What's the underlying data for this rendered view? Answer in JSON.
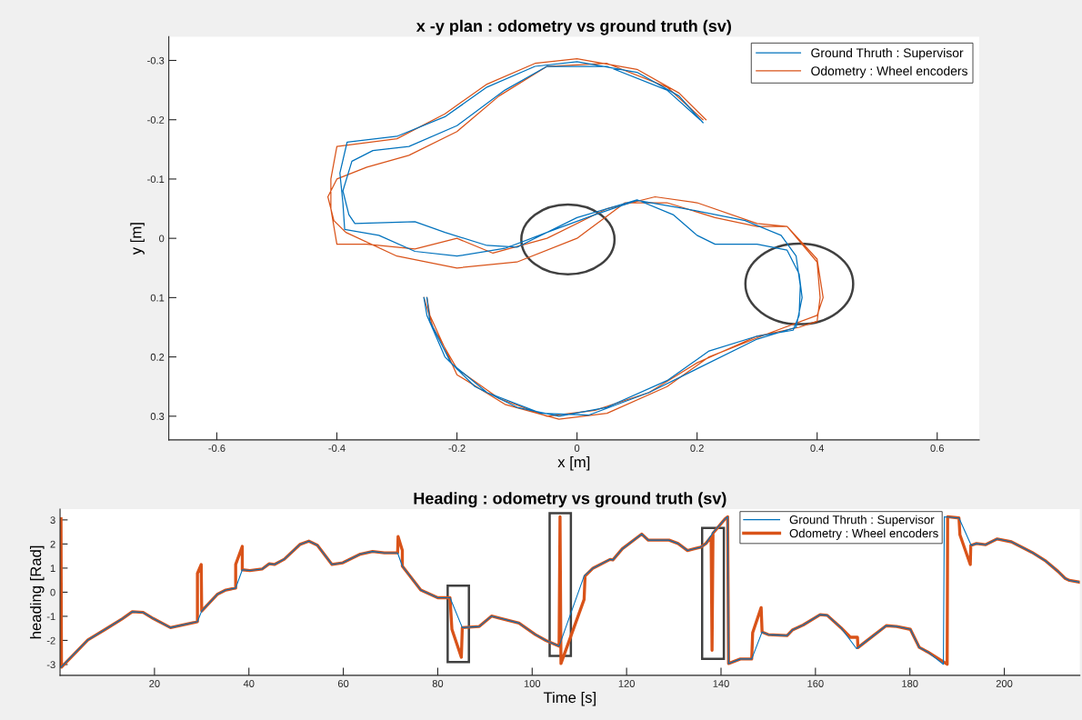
{
  "chart_data": [
    {
      "type": "line",
      "title": "x -y plan : odometry vs ground truth (sv)",
      "xlabel": "x [m]",
      "ylabel": "y [m]",
      "xlim": [
        -0.68,
        0.67
      ],
      "ylim": [
        0.34,
        -0.34
      ],
      "xticks": [
        -0.6,
        -0.4,
        -0.2,
        0,
        0.2,
        0.4,
        0.6
      ],
      "yticks": [
        -0.3,
        -0.2,
        -0.1,
        0,
        0.1,
        0.2,
        0.3
      ],
      "legend": "top right",
      "grid": false,
      "marker": "none",
      "line_style": "solid",
      "series": [
        {
          "name": "Ground Thruth : Supervisor",
          "color": "#0072bd",
          "x": [
            0.21,
            0.17,
            0.1,
            0,
            -0.07,
            -0.15,
            -0.22,
            -0.3,
            -0.383,
            -0.395,
            -0.39,
            -0.387,
            -0.33,
            -0.27,
            -0.2,
            -0.12,
            -0.05,
            0.03,
            0.1,
            0.18,
            0.28,
            0.34,
            0.365,
            0.372,
            0.37,
            0.36,
            0.3,
            0.22,
            0.15,
            0.05,
            -0.03,
            -0.1,
            -0.17,
            -0.22,
            -0.25,
            -0.255,
            null,
            0.205,
            0.15,
            0.05,
            -0.05,
            -0.12,
            -0.2,
            -0.28,
            -0.34,
            -0.375,
            -0.39,
            -0.38,
            -0.37,
            -0.27,
            -0.22,
            -0.15,
            -0.1,
            0,
            0.1,
            0.16,
            0.2,
            0.23,
            0.3,
            0.35,
            0.37,
            0.375,
            0.365,
            0.3,
            0.2,
            0.12,
            0.02,
            -0.06,
            -0.15,
            -0.21,
            -0.245,
            -0.25
          ],
          "values": [
            -0.195,
            -0.24,
            -0.28,
            -0.298,
            -0.29,
            -0.255,
            -0.205,
            -0.172,
            -0.162,
            -0.11,
            -0.06,
            -0.015,
            -0.005,
            0.022,
            0.03,
            0.017,
            -0.01,
            -0.04,
            -0.064,
            -0.05,
            -0.03,
            -0.005,
            0.03,
            0.08,
            0.13,
            0.155,
            0.165,
            0.19,
            0.24,
            0.285,
            0.3,
            0.285,
            0.25,
            0.2,
            0.13,
            0.1,
            null,
            -0.2,
            -0.25,
            -0.29,
            -0.29,
            -0.25,
            -0.19,
            -0.155,
            -0.148,
            -0.13,
            -0.08,
            -0.04,
            -0.025,
            -0.028,
            -0.01,
            0.012,
            0.015,
            -0.035,
            -0.065,
            -0.04,
            -0.005,
            0.01,
            0.01,
            0.02,
            0.06,
            0.1,
            0.15,
            0.17,
            0.22,
            0.26,
            0.298,
            0.295,
            0.26,
            0.21,
            0.14,
            0.1
          ]
        },
        {
          "name": "Odometry : Wheel encoders",
          "color": "#d95319",
          "x": [
            0.215,
            0.17,
            0.1,
            0,
            -0.07,
            -0.15,
            -0.22,
            -0.3,
            -0.4,
            -0.41,
            -0.41,
            -0.4,
            -0.35,
            -0.27,
            -0.2,
            -0.14,
            -0.05,
            0.05,
            0.13,
            0.2,
            0.3,
            0.35,
            0.4,
            0.405,
            0.4,
            0.37,
            0.3,
            0.2,
            0.12,
            0.03,
            -0.05,
            -0.13,
            -0.2,
            -0.24,
            -0.255,
            null,
            0.21,
            0.15,
            0.05,
            -0.05,
            -0.13,
            -0.2,
            -0.28,
            -0.35,
            -0.4,
            -0.415,
            -0.405,
            -0.385,
            -0.3,
            -0.2,
            -0.1,
            0,
            0.08,
            0.15,
            0.23,
            0.3,
            0.35,
            0.4,
            0.41,
            0.4,
            0.32,
            0.22,
            0.15,
            0.05,
            -0.03,
            -0.12,
            -0.2,
            -0.245,
            -0.25
          ],
          "values": [
            -0.2,
            -0.245,
            -0.285,
            -0.303,
            -0.295,
            -0.26,
            -0.21,
            -0.168,
            -0.155,
            -0.1,
            -0.05,
            0.01,
            0.01,
            0.018,
            0.0,
            0.025,
            0.0,
            -0.05,
            -0.07,
            -0.06,
            -0.025,
            -0.02,
            0.04,
            0.1,
            0.14,
            0.15,
            0.165,
            0.21,
            0.26,
            0.29,
            0.3,
            0.27,
            0.22,
            0.15,
            0.1,
            null,
            -0.2,
            -0.255,
            -0.295,
            -0.29,
            -0.24,
            -0.18,
            -0.14,
            -0.12,
            -0.1,
            -0.07,
            -0.03,
            -0.01,
            0.03,
            0.05,
            0.04,
            0.0,
            -0.06,
            -0.06,
            -0.035,
            -0.02,
            -0.02,
            0.035,
            0.1,
            0.13,
            0.16,
            0.2,
            0.25,
            0.295,
            0.305,
            0.28,
            0.23,
            0.13,
            0.1
          ]
        }
      ]
    },
    {
      "type": "line",
      "title": "Heading : odometry vs ground truth (sv)",
      "xlabel": "Time [s]",
      "ylabel": "heading [Rad]",
      "xlim": [
        0,
        216
      ],
      "ylim": [
        -3.45,
        3.45
      ],
      "xticks": [
        20,
        40,
        60,
        80,
        100,
        120,
        140,
        160,
        180,
        200
      ],
      "yticks": [
        -3,
        -2,
        -1,
        0,
        1,
        2,
        3
      ],
      "legend": "top right",
      "grid": false,
      "marker": "none",
      "line_style": "solid",
      "series": [
        {
          "name": "Ground Thruth : Supervisor",
          "color": "#0072bd",
          "x": [
            0.2,
            5.9,
            9.6,
            13.2,
            15.3,
            17.6,
            19.8,
            23.4,
            28.5,
            29.1,
            30,
            33.3,
            35.1,
            37.2,
            38.6,
            40.2,
            42.8,
            44.3,
            45.4,
            47.5,
            50.8,
            52.7,
            54.5,
            57.6,
            59.9,
            63.6,
            66.2,
            68.7,
            71.5,
            72.5,
            76.4,
            80,
            82.6,
            85.2,
            88.8,
            91.4,
            93.2,
            97.2,
            100.7,
            102.9,
            105.7,
            111,
            112.9,
            116.5,
            117.1,
            119.1,
            123.2,
            124.6,
            129,
            130.9,
            132.9,
            135.7,
            136.8,
            138.2,
            140.8,
            141.4,
            141.6,
            144.1,
            146.5,
            148.7,
            150,
            154,
            155.1,
            157.4,
            161,
            162.5,
            165.4,
            168.7,
            172.1,
            175,
            177.2,
            180.1,
            182,
            183.8,
            187.1,
            187.3,
            190.4,
            193,
            194.1,
            196,
            198.5,
            201.5,
            205.9,
            208.8,
            211.4,
            212.9,
            213.8,
            215.8
          ],
          "values": [
            -3.11,
            -1.98,
            -1.54,
            -1.1,
            -0.81,
            -0.84,
            -1.1,
            -1.47,
            -1.25,
            -1.22,
            -0.78,
            -0.09,
            0.09,
            0.17,
            0.93,
            0.9,
            0.96,
            1.18,
            1.15,
            1.37,
            1.98,
            2.12,
            1.95,
            1.15,
            1.22,
            1.58,
            1.69,
            1.63,
            1.63,
            1.08,
            0.09,
            -0.23,
            -0.23,
            -1.47,
            -1.42,
            -0.99,
            -1.08,
            -1.28,
            -1.76,
            -2.0,
            -2.24,
            0.67,
            1.0,
            1.36,
            1.34,
            1.8,
            2.41,
            2.16,
            2.16,
            2.02,
            1.73,
            1.87,
            2.02,
            2.45,
            3.03,
            3.13,
            -2.96,
            -2.77,
            -2.77,
            -1.65,
            -1.76,
            -1.8,
            -1.57,
            -1.36,
            -0.93,
            -0.96,
            -1.47,
            -2.34,
            -1.83,
            -1.39,
            -1.42,
            -1.54,
            -2.29,
            -2.48,
            -2.99,
            3.13,
            3.08,
            1.94,
            2.02,
            1.97,
            2.21,
            2.09,
            1.65,
            1.29,
            0.86,
            0.57,
            0.49,
            0.42
          ]
        },
        {
          "name": "Odometry : Wheel encoders",
          "color": "#d95319",
          "x": [
            0.2,
            0.3,
            5.9,
            9.6,
            13.2,
            15.3,
            17.6,
            19.8,
            23.4,
            28.5,
            29.1,
            29.1,
            29.9,
            30,
            33.3,
            35.1,
            37.2,
            37.2,
            38.6,
            38.6,
            40.2,
            42.8,
            44.3,
            45.4,
            47.5,
            50.8,
            52.7,
            54.5,
            57.6,
            59.9,
            63.6,
            66.2,
            68.7,
            71.5,
            71.6,
            72.5,
            72.5,
            76.4,
            80,
            82.6,
            83,
            85,
            85.2,
            88.8,
            91.4,
            93.2,
            97.2,
            100.7,
            102.9,
            105.7,
            105.9,
            106.1,
            111,
            111.2,
            112.9,
            116.5,
            117.1,
            119.1,
            123.2,
            124.6,
            129,
            130.9,
            132.9,
            135.7,
            136.8,
            137.9,
            138.1,
            138.3,
            140.8,
            141.4,
            141.6,
            144.1,
            146.5,
            146.7,
            148.5,
            148.7,
            150,
            154,
            155.1,
            157.4,
            161,
            162.5,
            165.4,
            167.4,
            168.9,
            169,
            172.1,
            175,
            177.2,
            180.1,
            182,
            183.8,
            187.9,
            188,
            190.4,
            190.6,
            192.8,
            192.9,
            194.1,
            196,
            198.5,
            201.5,
            205.9,
            208.8,
            211.4,
            212.9,
            213.8,
            215.8
          ],
          "values": [
            3.05,
            -3.11,
            -1.98,
            -1.54,
            -1.1,
            -0.81,
            -0.84,
            -1.1,
            -1.47,
            -1.25,
            -1.22,
            0.78,
            1.15,
            -0.78,
            -0.09,
            0.09,
            0.17,
            1.15,
            1.9,
            0.93,
            0.9,
            0.96,
            1.18,
            1.15,
            1.37,
            1.98,
            2.12,
            1.95,
            1.15,
            1.22,
            1.58,
            1.69,
            1.63,
            1.63,
            2.31,
            1.73,
            1.08,
            0.09,
            -0.23,
            -0.23,
            -1.54,
            -2.7,
            -1.47,
            -1.42,
            -0.99,
            -1.08,
            -1.28,
            -1.76,
            -2.0,
            -2.24,
            3.13,
            -2.96,
            -0.3,
            0.67,
            1.0,
            1.36,
            1.34,
            1.8,
            2.41,
            2.16,
            2.16,
            2.02,
            1.73,
            1.87,
            2.02,
            2.3,
            -2.41,
            2.45,
            3.03,
            3.13,
            -2.96,
            -2.77,
            -2.77,
            -1.68,
            -0.64,
            -1.65,
            -1.76,
            -1.8,
            -1.57,
            -1.36,
            -0.93,
            -0.96,
            -1.47,
            -1.87,
            -1.87,
            -2.3,
            -1.83,
            -1.39,
            -1.42,
            -1.54,
            -2.29,
            -2.48,
            -2.99,
            3.13,
            3.08,
            2.38,
            1.15,
            1.94,
            2.02,
            1.97,
            2.21,
            2.09,
            1.65,
            1.29,
            0.86,
            0.57,
            0.49,
            0.42
          ]
        }
      ]
    }
  ]
}
